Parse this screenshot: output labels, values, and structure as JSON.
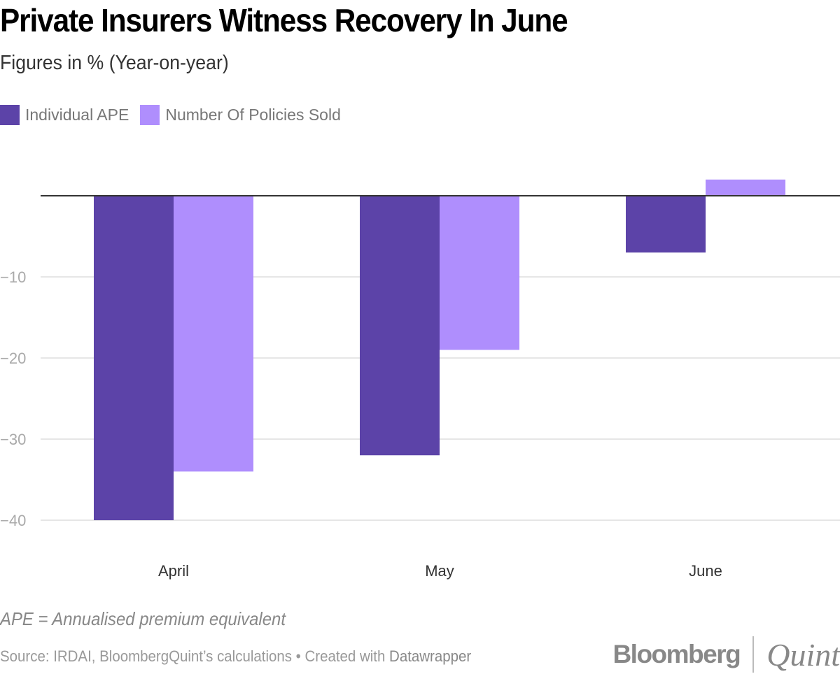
{
  "header": {
    "title": "Private Insurers Witness Recovery In June",
    "subtitle": "Figures in % (Year-on-year)"
  },
  "legend": [
    {
      "label": "Individual APE",
      "color": "#5c43a8"
    },
    {
      "label": "Number Of Policies Sold",
      "color": "#af8efd"
    }
  ],
  "chart_data": {
    "type": "bar",
    "title": "Private Insurers Witness Recovery In June",
    "subtitle": "Figures in % (Year-on-year)",
    "categories": [
      "April",
      "May",
      "June"
    ],
    "series": [
      {
        "name": "Individual APE",
        "color": "#5c43a8",
        "values": [
          -40,
          -32,
          -7
        ]
      },
      {
        "name": "Number Of Policies Sold",
        "color": "#af8efd",
        "values": [
          -34,
          -19,
          2
        ]
      }
    ],
    "xlabel": "",
    "ylabel": "",
    "ylim": [
      -40,
      2
    ],
    "yticks": [
      -10,
      -20,
      -30,
      -40
    ],
    "ytick_labels": [
      "−10",
      "−20",
      "−30",
      "−40"
    ],
    "grid": true,
    "legend_position": "top-left"
  },
  "footer": {
    "note": "APE = Annualised premium equivalent",
    "source_prefix": "Source: IRDAI, BloombergQuint’s calculations • Created with ",
    "source_tool": "Datawrapper",
    "logo_left": "Bloomberg",
    "logo_right": "Quint"
  }
}
